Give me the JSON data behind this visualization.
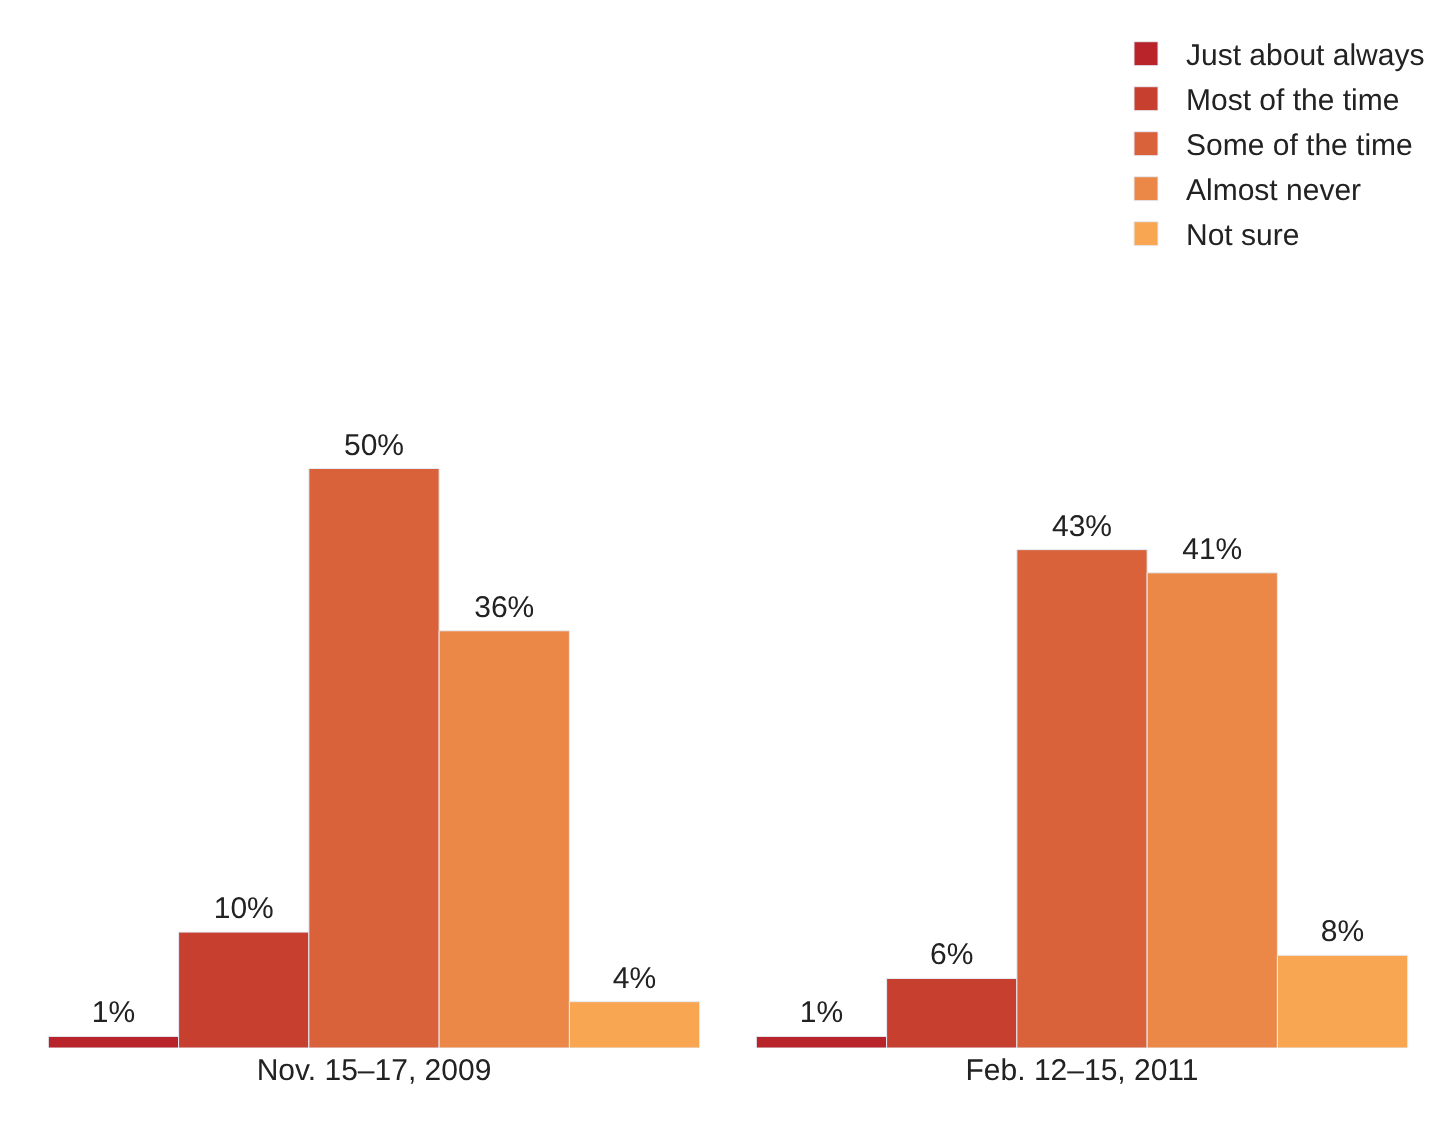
{
  "chart_data": {
    "type": "bar",
    "categories": [
      "Nov. 15–17, 2009",
      "Feb. 12–15, 2011"
    ],
    "series": [
      {
        "name": "Just about always",
        "color": "#b8242a",
        "values": [
          1,
          1
        ],
        "value_labels": [
          "1%",
          "1%"
        ]
      },
      {
        "name": "Most of the time",
        "color": "#c7402f",
        "values": [
          10,
          6
        ],
        "value_labels": [
          "10%",
          "6%"
        ]
      },
      {
        "name": "Some of the time",
        "color": "#d9623a",
        "values": [
          50,
          43
        ],
        "value_labels": [
          "50%",
          "43%"
        ]
      },
      {
        "name": "Almost never",
        "color": "#eb8847",
        "values": [
          36,
          41
        ],
        "value_labels": [
          "36%",
          "41%"
        ]
      },
      {
        "name": "Not sure",
        "color": "#f9a653",
        "values": [
          4,
          8
        ],
        "value_labels": [
          "4%",
          "8%"
        ]
      }
    ],
    "legend": "top right"
  }
}
